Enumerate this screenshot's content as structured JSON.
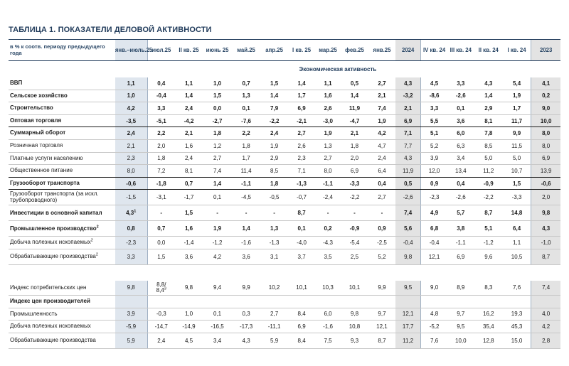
{
  "title": "ТАБЛИЦА 1. ПОКАЗАТЕЛИ ДЕЛОВОЙ АКТИВНОСТИ",
  "header": {
    "label": "в % к соотв. периоду предыдущего года",
    "columns": [
      "янв.–июль.25",
      "июл.25",
      "II кв. 25",
      "июнь 25",
      "май.25",
      "апр.25",
      "I кв. 25",
      "мар.25",
      "фев.25",
      "янв.25",
      "2024",
      "IV кв. 24",
      "III кв. 24",
      "II кв. 24",
      "I кв. 24",
      "2023"
    ]
  },
  "section": "Экономическая активность",
  "rows_a": [
    {
      "label": "ВВП",
      "bold": true,
      "values": [
        "1,1",
        "0,4",
        "1,1",
        "1,0",
        "0,7",
        "1,5",
        "1,4",
        "1,1",
        "0,5",
        "2,7",
        "4,3",
        "4,5",
        "3,3",
        "4,3",
        "5,4",
        "4,1"
      ]
    },
    {
      "label": "Сельское хозяйство",
      "bold": true,
      "values": [
        "1,0",
        "-0,4",
        "1,4",
        "1,5",
        "1,3",
        "1,4",
        "1,7",
        "1,6",
        "1,4",
        "2,1",
        "-3,2",
        "-8,6",
        "-2,6",
        "1,4",
        "1,9",
        "0,2"
      ]
    },
    {
      "label": "Строительство",
      "bold": true,
      "values": [
        "4,2",
        "3,3",
        "2,4",
        "0,0",
        "0,1",
        "7,9",
        "6,9",
        "2,6",
        "11,9",
        "7,4",
        "2,1",
        "3,3",
        "0,1",
        "2,9",
        "1,7",
        "9,0"
      ]
    },
    {
      "label": "Оптовая торговля",
      "bold": true,
      "values": [
        "-3,5",
        "-5,1",
        "-4,2",
        "-2,7",
        "-7,6",
        "-2,2",
        "-2,1",
        "-3,0",
        "-4,7",
        "1,9",
        "6,9",
        "5,5",
        "3,6",
        "8,1",
        "11,7",
        "10,0"
      ]
    },
    {
      "label": "Суммарный оборот",
      "bold": true,
      "values": [
        "2,4",
        "2,2",
        "2,1",
        "1,8",
        "2,2",
        "2,4",
        "2,7",
        "1,9",
        "2,1",
        "4,2",
        "7,1",
        "5,1",
        "6,0",
        "7,8",
        "9,9",
        "8,0"
      ]
    },
    {
      "label": "Розничная торговля",
      "bold": false,
      "values": [
        "2,1",
        "2,0",
        "1,6",
        "1,2",
        "1,8",
        "1,9",
        "2,6",
        "1,3",
        "1,8",
        "4,7",
        "7,7",
        "5,2",
        "6,3",
        "8,5",
        "11,5",
        "8,0"
      ]
    },
    {
      "label": "Платные услуги населению",
      "bold": false,
      "values": [
        "2,3",
        "1,8",
        "2,4",
        "2,7",
        "1,7",
        "2,9",
        "2,3",
        "2,7",
        "2,0",
        "2,4",
        "4,3",
        "3,9",
        "3,4",
        "5,0",
        "5,0",
        "6,9"
      ]
    },
    {
      "label": "Общественное питание",
      "bold": false,
      "values": [
        "8,0",
        "7,2",
        "8,1",
        "7,4",
        "11,4",
        "8,5",
        "7,1",
        "8,0",
        "6,9",
        "6,4",
        "11,9",
        "12,0",
        "13,4",
        "11,2",
        "10,7",
        "13,9"
      ]
    },
    {
      "label": "Грузооборот транспорта",
      "bold": true,
      "values": [
        "-0,6",
        "-1,8",
        "0,7",
        "1,4",
        "-1,1",
        "1,8",
        "-1,3",
        "-1,1",
        "-3,3",
        "0,4",
        "0,5",
        "0,9",
        "0,4",
        "-0,9",
        "1,5",
        "-0,6"
      ]
    }
  ],
  "row_freight": {
    "label": "Грузооборот транспорта (за искл. трубопроводного)",
    "values": [
      "-1,5",
      "-3,1",
      "-1,7",
      "0,1",
      "-4,5",
      "-0,5",
      "-0,7",
      "-2,4",
      "-2,2",
      "2,7",
      "-2,6",
      "-2,3",
      "-2,6",
      "-2,2",
      "-3,3",
      "2,0"
    ]
  },
  "row_invest": {
    "label": "Инвестиции в основной капитал",
    "first": "4,3",
    "first_sup": "1",
    "values": [
      "-",
      "1,5",
      "-",
      "-",
      "-",
      "8,7",
      "-",
      "-",
      "-",
      "7,4",
      "4,9",
      "5,7",
      "8,7",
      "14,8",
      "9,8"
    ]
  },
  "row_prom": {
    "label": "Промышленное производство",
    "sup": "2",
    "values": [
      "0,8",
      "0,7",
      "1,6",
      "1,9",
      "1,4",
      "1,3",
      "0,1",
      "0,2",
      "-0,9",
      "0,9",
      "5,6",
      "6,8",
      "3,8",
      "5,1",
      "6,4",
      "4,3"
    ]
  },
  "row_mining": {
    "label": "Добыча полезных ископаемых",
    "sup": "2",
    "values": [
      "-2,3",
      "0,0",
      "-1,4",
      "-1,2",
      "-1,6",
      "-1,3",
      "-4,0",
      "-4,3",
      "-5,4",
      "-2,5",
      "-0,4",
      "-0,4",
      "-1,1",
      "-1,2",
      "1,1",
      "-1,0"
    ]
  },
  "row_manuf": {
    "label": "Обрабатывающие производства",
    "sup": "2",
    "values": [
      "3,3",
      "1,5",
      "3,6",
      "4,2",
      "3,6",
      "3,1",
      "3,7",
      "3,5",
      "2,5",
      "5,2",
      "9,8",
      "12,1",
      "6,9",
      "9,6",
      "10,5",
      "8,7"
    ]
  },
  "row_cpi": {
    "label": "Индекс потребительских цен",
    "first": "9,8",
    "second_a": "8,8/",
    "second_b": "8,4",
    "second_sup": "3",
    "values": [
      "9,8",
      "9,4",
      "9,9",
      "10,2",
      "10,1",
      "10,3",
      "10,1",
      "9,9",
      "9,5",
      "9,0",
      "8,9",
      "8,3",
      "7,6",
      "7,4"
    ]
  },
  "row_ppi_title": {
    "label": "Индекс цен производителей"
  },
  "rows_ppi": [
    {
      "label": "Промышленность",
      "values": [
        "3,9",
        "-0,3",
        "1,0",
        "0,1",
        "0,3",
        "2,7",
        "8,4",
        "6,0",
        "9,8",
        "9,7",
        "12,1",
        "4,8",
        "9,7",
        "16,2",
        "19,3",
        "4,0"
      ]
    },
    {
      "label": "Добыча полезных ископаемых",
      "values": [
        "-5,9",
        "-14,7",
        "-14,9",
        "-16,5",
        "-17,3",
        "-11,1",
        "6,9",
        "-1,6",
        "10,8",
        "12,1",
        "17,7",
        "-5,2",
        "9,5",
        "35,4",
        "45,3",
        "4,2"
      ]
    },
    {
      "label": "Обрабатывающие производства",
      "values": [
        "5,9",
        "2,4",
        "4,5",
        "3,4",
        "4,3",
        "5,9",
        "8,4",
        "7,5",
        "9,3",
        "8,7",
        "11,2",
        "7,6",
        "10,0",
        "12,8",
        "15,0",
        "2,8"
      ]
    }
  ]
}
